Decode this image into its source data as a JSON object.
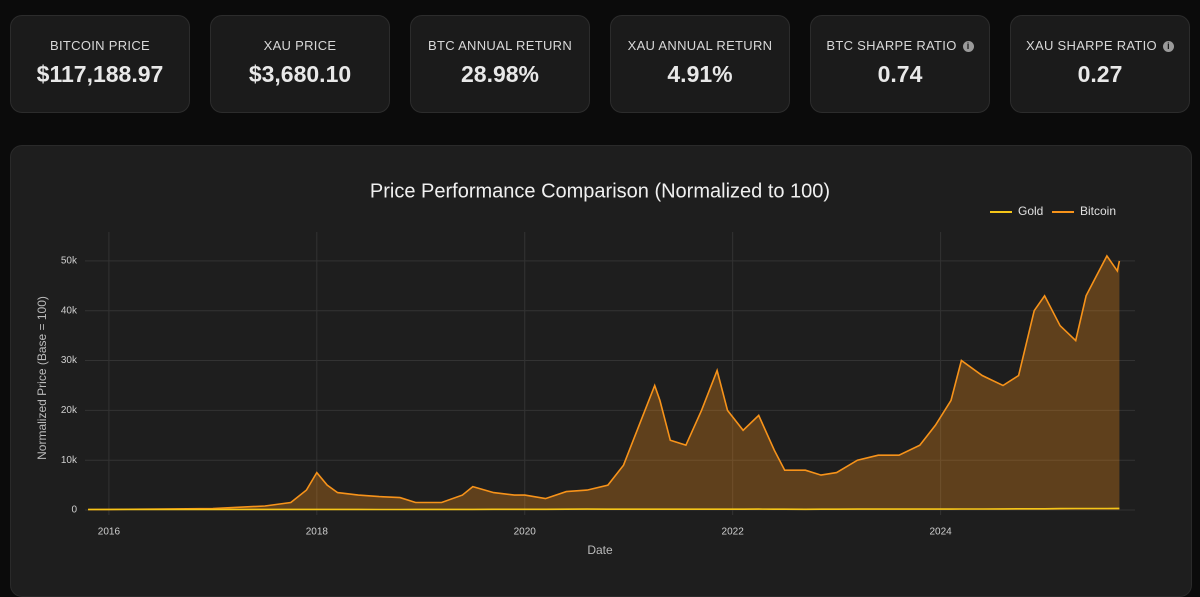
{
  "cards": [
    {
      "label": "BITCOIN PRICE",
      "value": "$117,188.97"
    },
    {
      "label": "XAU PRICE",
      "value": "$3,680.10"
    },
    {
      "label": "BTC ANNUAL RETURN",
      "value": "28.98%"
    },
    {
      "label": "XAU ANNUAL RETURN",
      "value": "4.91%"
    },
    {
      "label": "BTC SHARPE RATIO",
      "value": "0.74"
    },
    {
      "label": "XAU SHARPE RATIO",
      "value": "0.27"
    }
  ],
  "chart_data": {
    "type": "line",
    "title": "Price Performance Comparison (Normalized to 100)",
    "x_label": "Date",
    "y_label": "Normalized Price (Base = 100)",
    "x": [
      2015.8,
      2016.0,
      2016.5,
      2017.0,
      2017.5,
      2017.75,
      2017.9,
      2018.0,
      2018.1,
      2018.2,
      2018.4,
      2018.6,
      2018.8,
      2018.95,
      2019.2,
      2019.4,
      2019.5,
      2019.7,
      2019.9,
      2020.0,
      2020.2,
      2020.4,
      2020.6,
      2020.8,
      2020.95,
      2021.1,
      2021.25,
      2021.3,
      2021.4,
      2021.55,
      2021.7,
      2021.85,
      2021.95,
      2022.1,
      2022.25,
      2022.4,
      2022.5,
      2022.7,
      2022.85,
      2023.0,
      2023.2,
      2023.4,
      2023.6,
      2023.8,
      2023.95,
      2024.1,
      2024.2,
      2024.4,
      2024.6,
      2024.75,
      2024.9,
      2025.0,
      2025.15,
      2025.3,
      2025.4,
      2025.5,
      2025.6,
      2025.7,
      2025.72
    ],
    "series": [
      {
        "name": "Gold",
        "color": "#f5c518",
        "area": false,
        "values": [
          100,
          105,
          120,
          110,
          114,
          117,
          116,
          120,
          120,
          118,
          115,
          110,
          112,
          118,
          118,
          118,
          127,
          137,
          134,
          140,
          145,
          158,
          177,
          172,
          170,
          164,
          160,
          165,
          165,
          164,
          162,
          164,
          165,
          172,
          176,
          166,
          158,
          152,
          158,
          168,
          175,
          178,
          175,
          180,
          188,
          186,
          198,
          212,
          220,
          240,
          241,
          250,
          275,
          300,
          305,
          302,
          305,
          330,
          332
        ]
      },
      {
        "name": "Bitcoin",
        "color": "#f7931a",
        "area": true,
        "values": [
          100,
          130,
          200,
          300,
          800,
          1500,
          4000,
          7500,
          5000,
          3500,
          3000,
          2700,
          2500,
          1500,
          1500,
          3000,
          4700,
          3500,
          3000,
          3000,
          2300,
          3700,
          4000,
          5000,
          9000,
          17000,
          25000,
          22000,
          14000,
          13000,
          20000,
          28000,
          20000,
          16000,
          19000,
          12000,
          8000,
          8000,
          7000,
          7500,
          10000,
          11000,
          11000,
          13000,
          17000,
          22000,
          30000,
          27000,
          25000,
          27000,
          40000,
          43000,
          37000,
          34000,
          43000,
          47000,
          51000,
          48000,
          50000
        ]
      }
    ],
    "xlim": [
      2015.77,
      2025.87
    ],
    "xticks": [
      2016,
      2018,
      2020,
      2022,
      2024
    ],
    "ylim": [
      -1000,
      55800
    ],
    "yticks": [
      0,
      {
        "value": 10000,
        "label": "10k"
      },
      {
        "value": 20000,
        "label": "20k"
      },
      {
        "value": 30000,
        "label": "30k"
      },
      {
        "value": 40000,
        "label": "40k"
      },
      {
        "value": 50000,
        "label": "50k"
      }
    ],
    "grid": true,
    "legend": "top-right"
  }
}
